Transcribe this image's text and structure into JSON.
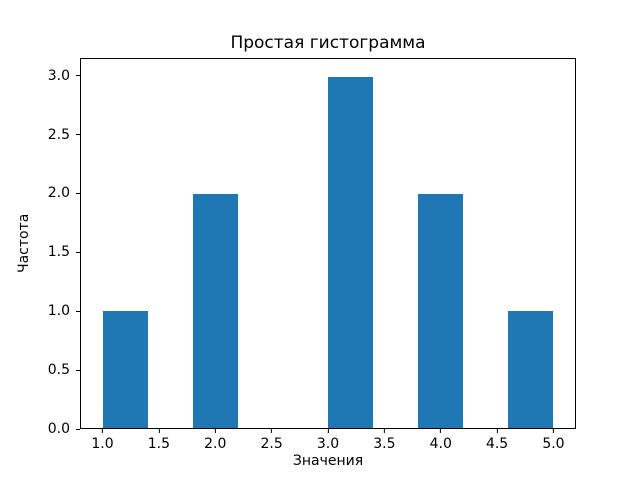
{
  "chart_data": {
    "type": "bar",
    "subtype": "histogram",
    "title": "Простая гистограмма",
    "xlabel": "Значения",
    "ylabel": "Частота",
    "bar_color": "#1f77b4",
    "grid": false,
    "legend": null,
    "bins": [
      {
        "x0": 1.0,
        "x1": 1.4,
        "count": 1
      },
      {
        "x0": 1.8,
        "x1": 2.2,
        "count": 2
      },
      {
        "x0": 3.0,
        "x1": 3.4,
        "count": 3
      },
      {
        "x0": 3.8,
        "x1": 4.2,
        "count": 2
      },
      {
        "x0": 4.6,
        "x1": 5.0,
        "count": 1
      }
    ],
    "xlim": [
      0.8,
      5.2
    ],
    "ylim": [
      0,
      3.15
    ],
    "xticks": [
      {
        "value": 1.0,
        "label": "1.0"
      },
      {
        "value": 1.5,
        "label": "1.5"
      },
      {
        "value": 2.0,
        "label": "2.0"
      },
      {
        "value": 2.5,
        "label": "2.5"
      },
      {
        "value": 3.0,
        "label": "3.0"
      },
      {
        "value": 3.5,
        "label": "3.5"
      },
      {
        "value": 4.0,
        "label": "4.0"
      },
      {
        "value": 4.5,
        "label": "4.5"
      },
      {
        "value": 5.0,
        "label": "5.0"
      }
    ],
    "yticks": [
      {
        "value": 0.0,
        "label": "0.0"
      },
      {
        "value": 0.5,
        "label": "0.5"
      },
      {
        "value": 1.0,
        "label": "1.0"
      },
      {
        "value": 1.5,
        "label": "1.5"
      },
      {
        "value": 2.0,
        "label": "2.0"
      },
      {
        "value": 2.5,
        "label": "2.5"
      },
      {
        "value": 3.0,
        "label": "3.0"
      }
    ]
  }
}
